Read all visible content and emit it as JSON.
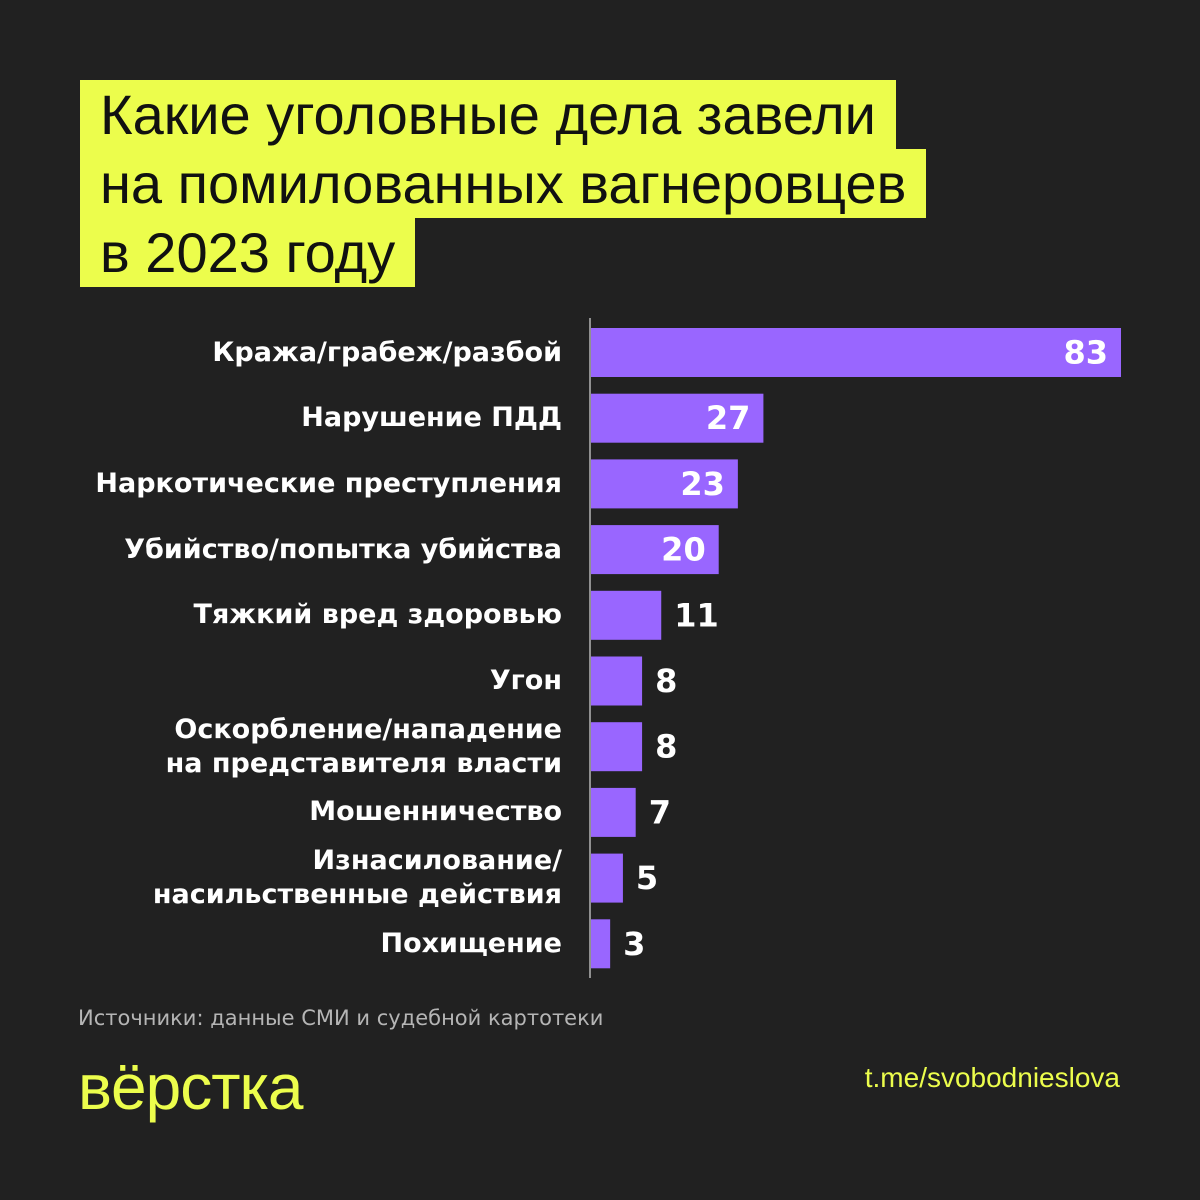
{
  "title_lines": [
    "Какие уголовные дела завели",
    "на помилованных вагнеровцев",
    "в 2023 году"
  ],
  "chart_data": {
    "type": "bar",
    "orientation": "horizontal",
    "categories": [
      "Кража/грабеж/разбой",
      "Нарушение ПДД",
      "Наркотические преступления",
      "Убийство/попытка убийства",
      "Тяжкий вред здоровью",
      "Угон",
      "Оскорбление/нападение\nна представителя власти",
      "Мошенничество",
      "Изнасилование/\nнасильственные действия",
      "Похищение"
    ],
    "values": [
      83,
      27,
      23,
      20,
      11,
      8,
      8,
      7,
      5,
      3
    ],
    "xlim": [
      0,
      83
    ],
    "grid": false,
    "bar_color": "#9966ff",
    "label_color": "#ffffff"
  },
  "source": "Источники: данные СМИ и судебной картотеки",
  "logo": "вёрстка",
  "link": "t.me/svobodnieslova",
  "colors": {
    "background": "#212121",
    "accent": "#ecfd4c",
    "bar": "#9966ff"
  }
}
